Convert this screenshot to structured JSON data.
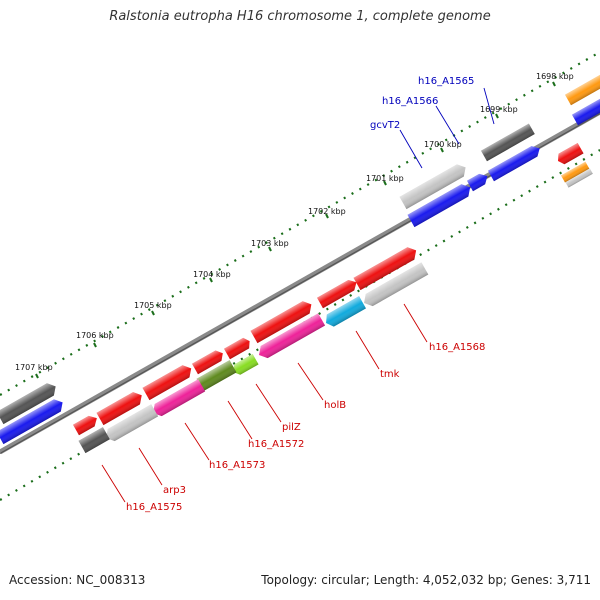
{
  "title": "Ralstonia eutropha H16 chromosome 1, complete genome",
  "footer": {
    "accession_label": "Accession:",
    "accession": "NC_008313",
    "topology_label": "Topology:",
    "topology": "circular",
    "length_label": "Length:",
    "length": "4,052,032 bp",
    "genes_label": "Genes:",
    "genes": "3,711"
  },
  "kbp_labels": [
    "1698 kbp",
    "1699 kbp",
    "1700 kbp",
    "1701 kbp",
    "1702 kbp",
    "1703 kbp",
    "1704 kbp",
    "1705 kbp",
    "1706 kbp",
    "1707 kbp"
  ],
  "gene_labels_top": [
    "h16_A1565",
    "h16_A1566",
    "gcvT2"
  ],
  "gene_labels_bottom": [
    "h16_A1568",
    "tmk",
    "holB",
    "pilZ",
    "h16_A1572",
    "h16_A1573",
    "arp3",
    "h16_A1575"
  ],
  "colors": {
    "red": "#ee1111",
    "blue": "#1a1aee",
    "dark_gray": "#555555",
    "light_gray": "#c4c4c4",
    "magenta": "#ee2299",
    "olive": "#5f8a1f",
    "green": "#33aa22",
    "cyan": "#11aadd",
    "orange": "#ff9911",
    "label_red": "#cc0000",
    "label_blue": "#0000bb",
    "tick_green": "#1b6e1b"
  }
}
